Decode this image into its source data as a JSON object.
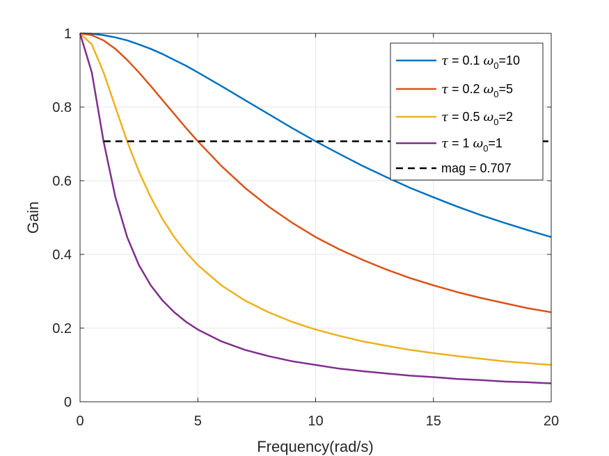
{
  "chart_data": {
    "type": "line",
    "title": "",
    "xlabel": "Frequency(rad/s)",
    "ylabel": "Gain",
    "xlim": [
      0,
      20
    ],
    "ylim": [
      0,
      1
    ],
    "xticks": [
      0,
      5,
      10,
      15,
      20
    ],
    "yticks": [
      0,
      0.2,
      0.4,
      0.6,
      0.8,
      1
    ],
    "xtick_labels": [
      "0",
      "5",
      "10",
      "15",
      "20"
    ],
    "ytick_labels": [
      "0",
      "0.2",
      "0.4",
      "0.6",
      "0.8",
      "1"
    ],
    "grid": true,
    "legend_position": "top-right",
    "x": [
      0,
      0.5,
      1,
      1.5,
      2,
      2.5,
      3,
      3.5,
      4,
      4.5,
      5,
      6,
      7,
      8,
      9,
      10,
      11,
      12,
      13,
      14,
      15,
      16,
      17,
      18,
      19,
      20
    ],
    "series": [
      {
        "name": "tau = 0.1 omega_0=10",
        "legend": {
          "tau_symbol": "τ",
          "tau_value": " = 0.1 ",
          "omega_symbol": "ω",
          "subscript": "0",
          "omega_value": "=10"
        },
        "color": "#0072BD",
        "values": [
          1.0,
          0.999,
          0.995,
          0.989,
          0.981,
          0.97,
          0.958,
          0.944,
          0.928,
          0.912,
          0.894,
          0.857,
          0.819,
          0.781,
          0.743,
          0.707,
          0.673,
          0.64,
          0.61,
          0.581,
          0.555,
          0.53,
          0.507,
          0.486,
          0.466,
          0.447
        ]
      },
      {
        "name": "tau = 0.2 omega_0=5",
        "legend": {
          "tau_symbol": "τ",
          "tau_value": " = 0.2 ",
          "omega_symbol": "ω",
          "subscript": "0",
          "omega_value": "=5"
        },
        "color": "#D95319",
        "values": [
          1.0,
          0.995,
          0.981,
          0.958,
          0.928,
          0.894,
          0.857,
          0.819,
          0.781,
          0.743,
          0.707,
          0.64,
          0.581,
          0.53,
          0.486,
          0.447,
          0.414,
          0.385,
          0.359,
          0.336,
          0.316,
          0.298,
          0.282,
          0.268,
          0.254,
          0.243
        ]
      },
      {
        "name": "tau = 0.5 omega_0=2",
        "legend": {
          "tau_symbol": "τ",
          "tau_value": " = 0.5 ",
          "omega_symbol": "ω",
          "subscript": "0",
          "omega_value": "=2"
        },
        "color": "#EDB120",
        "values": [
          1.0,
          0.97,
          0.894,
          0.8,
          0.707,
          0.625,
          0.555,
          0.496,
          0.447,
          0.406,
          0.371,
          0.316,
          0.275,
          0.243,
          0.217,
          0.196,
          0.179,
          0.164,
          0.152,
          0.141,
          0.132,
          0.124,
          0.117,
          0.11,
          0.105,
          0.1
        ]
      },
      {
        "name": "tau = 1 omega_0=1",
        "legend": {
          "tau_symbol": "τ",
          "tau_value": " = 1 ",
          "omega_symbol": "ω",
          "subscript": "0",
          "omega_value": "=1"
        },
        "color": "#7E2F8E",
        "values": [
          1.0,
          0.894,
          0.707,
          0.555,
          0.447,
          0.371,
          0.316,
          0.275,
          0.243,
          0.217,
          0.196,
          0.164,
          0.141,
          0.124,
          0.11,
          0.1,
          0.09,
          0.083,
          0.077,
          0.071,
          0.067,
          0.062,
          0.059,
          0.055,
          0.053,
          0.05
        ]
      }
    ],
    "reference_line": {
      "name": "mag = 0.707",
      "legend_text": "mag = 0.707",
      "y": 0.707,
      "x_range": [
        1,
        20
      ],
      "color": "#000000",
      "style": "dashed"
    }
  }
}
